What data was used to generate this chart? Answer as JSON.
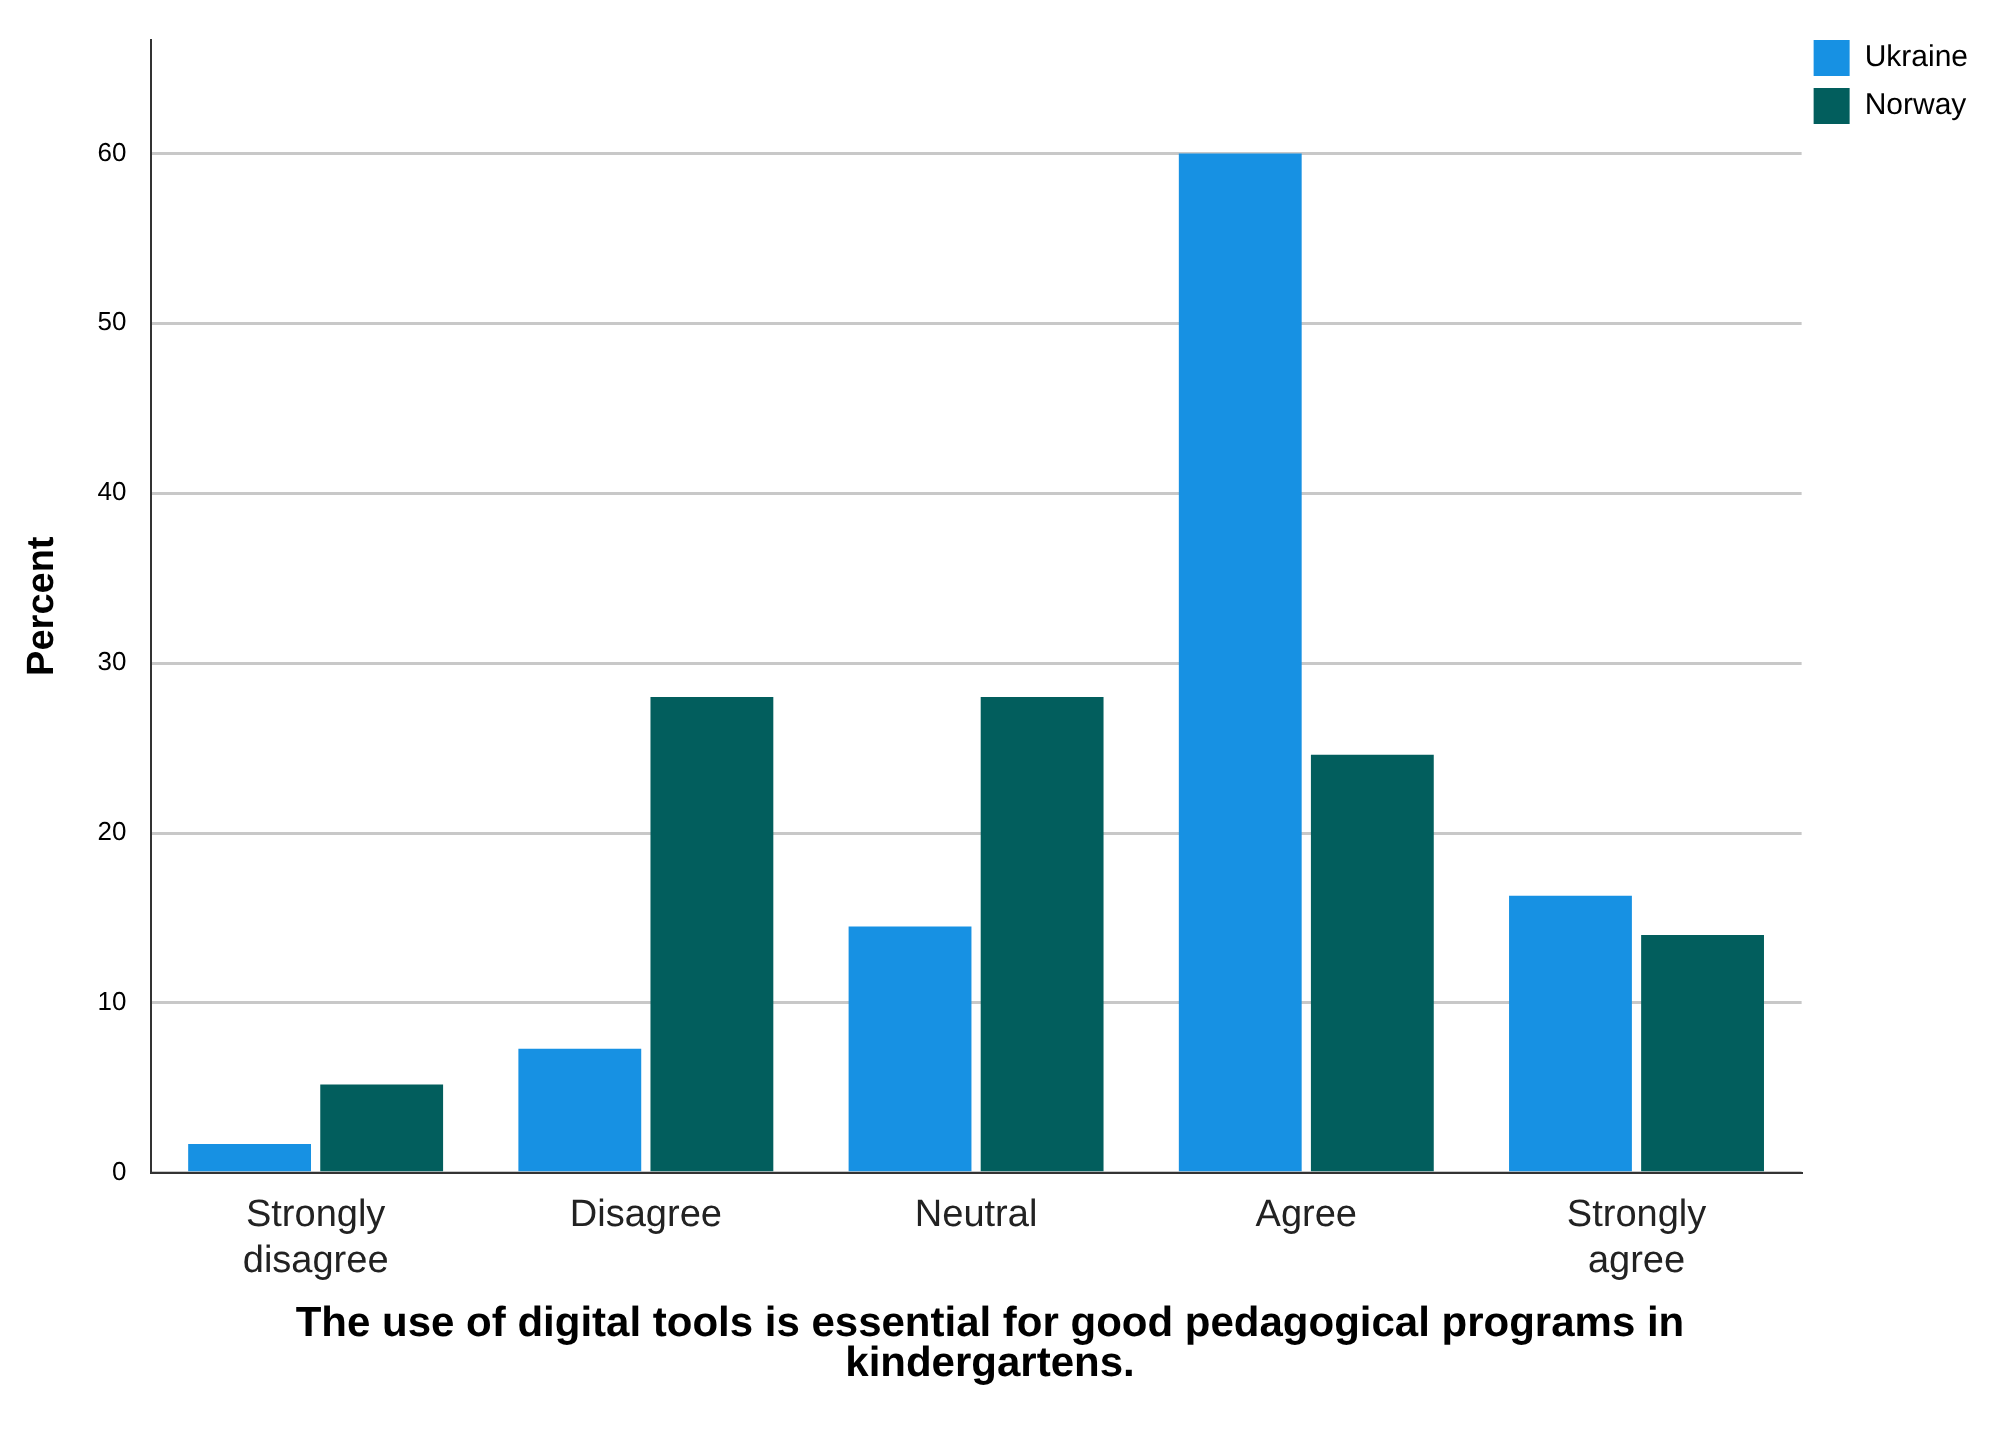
{
  "chart_data": {
    "type": "bar",
    "xlabel": "The use of digital tools is essential for good pedagogical programs in kindergartens.",
    "ylabel": "Percent",
    "categories": [
      "Strongly disagree",
      "Disagree",
      "Neutral",
      "Agree",
      "Strongly agree"
    ],
    "series": [
      {
        "name": "Ukraine",
        "color": "#1791e3",
        "values": [
          1.7,
          7.3,
          14.5,
          60,
          16.3
        ]
      },
      {
        "name": "Norway",
        "color": "#025e5d",
        "values": [
          5.2,
          28,
          28,
          24.6,
          14
        ]
      }
    ],
    "ylim": [
      0,
      66.7
    ],
    "yticks": [
      0,
      10,
      20,
      30,
      40,
      50,
      60
    ],
    "grid": "y",
    "legend": "top right"
  }
}
